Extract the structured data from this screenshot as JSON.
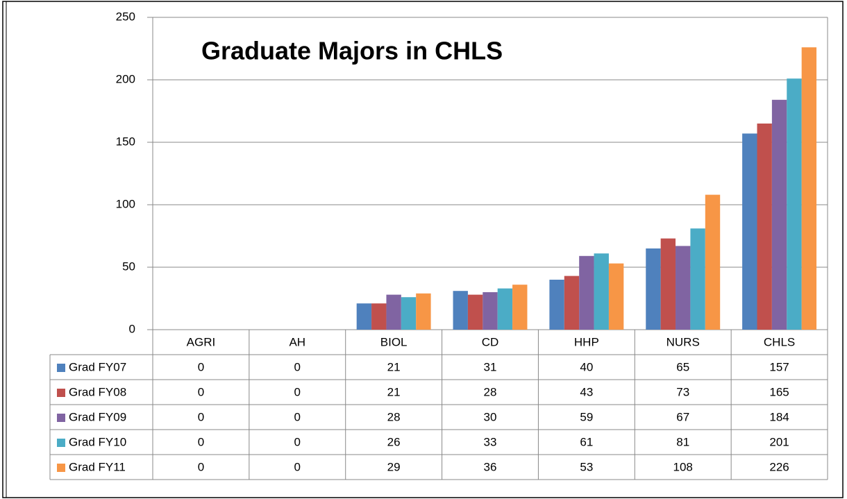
{
  "chart_data": {
    "type": "bar",
    "title": "Graduate Majors in CHLS",
    "categories": [
      "AGRI",
      "AH",
      "BIOL",
      "CD",
      "HHP",
      "NURS",
      "CHLS"
    ],
    "series": [
      {
        "name": "Grad FY07",
        "color": "#4F81BD",
        "values": [
          0,
          0,
          21,
          31,
          40,
          65,
          157
        ]
      },
      {
        "name": "Grad FY08",
        "color": "#C0504D",
        "values": [
          0,
          0,
          21,
          28,
          43,
          73,
          165
        ]
      },
      {
        "name": "Grad FY09",
        "color": "#8064A2",
        "values": [
          0,
          0,
          28,
          30,
          59,
          67,
          184
        ]
      },
      {
        "name": "Grad FY10",
        "color": "#4BACC6",
        "values": [
          0,
          0,
          26,
          33,
          61,
          81,
          201
        ]
      },
      {
        "name": "Grad FY11",
        "color": "#F79646",
        "values": [
          0,
          0,
          29,
          36,
          53,
          108,
          226
        ]
      }
    ],
    "ylim": [
      0,
      250
    ],
    "yticks": [
      0,
      50,
      100,
      150,
      200,
      250
    ],
    "grid": true
  }
}
